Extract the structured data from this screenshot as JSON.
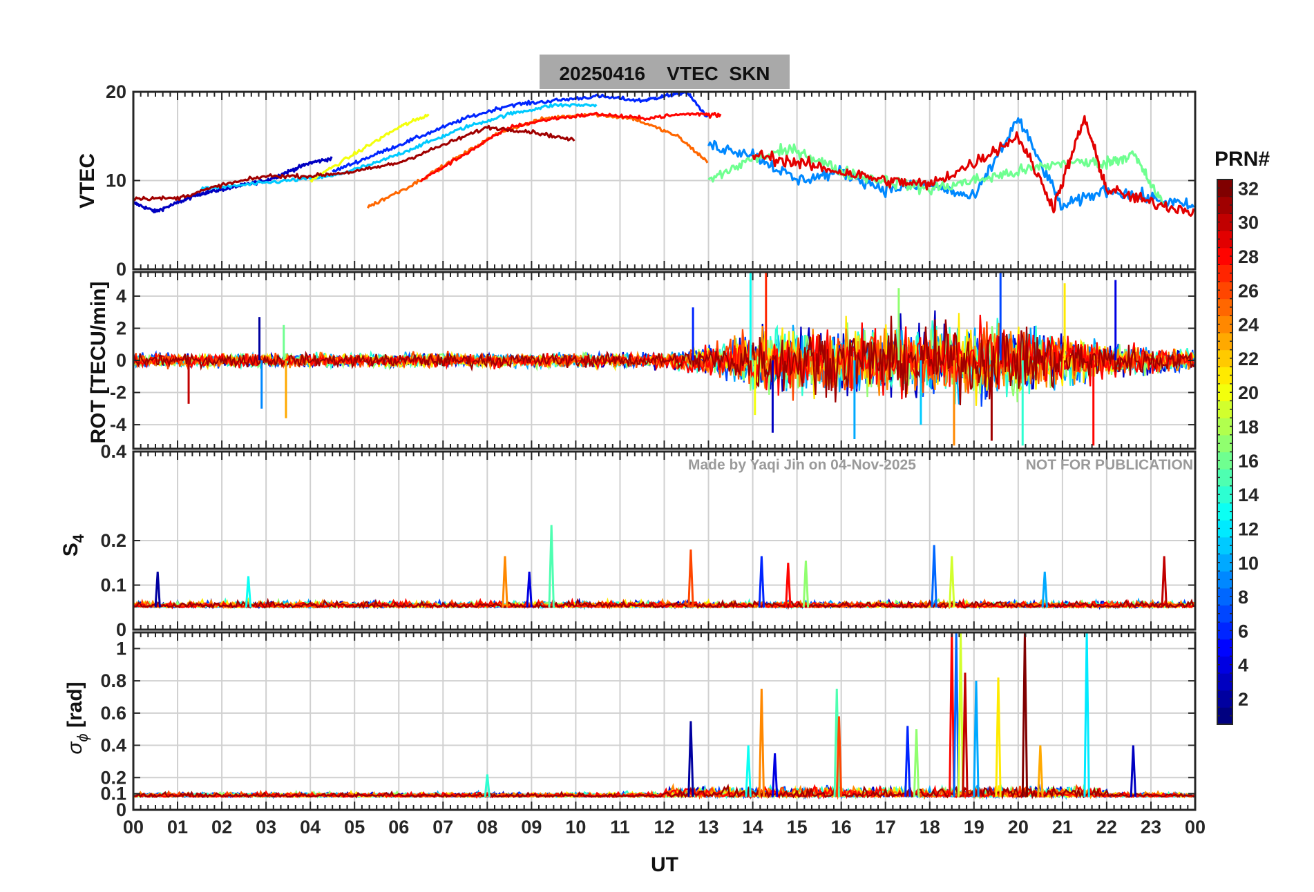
{
  "title": "20250416    VTEC  SKN",
  "watermark_left": "Made by Yaqi Jin on 04-Nov-2025",
  "watermark_right": "NOT FOR PUBLICATION",
  "colorbar": {
    "label": "PRN#",
    "min": 1,
    "max": 32,
    "ticks": [
      "2",
      "4",
      "6",
      "8",
      "10",
      "12",
      "14",
      "16",
      "18",
      "20",
      "22",
      "24",
      "26",
      "28",
      "30",
      "32"
    ],
    "colormap": "jet"
  },
  "chart_data": [
    {
      "type": "line",
      "panel": "vtec",
      "ylabel": "VTEC",
      "ylim": [
        0,
        20
      ],
      "yticks": [
        "0",
        "10",
        "20"
      ],
      "xlim": [
        0,
        24
      ],
      "grid": true,
      "series_note_hidden": true,
      "series": [
        {
          "prn": 3,
          "x": [
            0.0,
            0.5,
            1.0,
            1.5,
            2.0,
            2.5,
            3.0,
            3.5,
            4.0,
            4.5
          ],
          "y": [
            7.5,
            6.5,
            7.5,
            8.5,
            9.0,
            9.5,
            10.0,
            11.0,
            12.0,
            12.5
          ]
        },
        {
          "prn": 6,
          "x": [
            4.5,
            5.5,
            6.5,
            7.5,
            8.5,
            9.5,
            10.5,
            11.5,
            12.0,
            12.5,
            13.0
          ],
          "y": [
            11.0,
            13.0,
            15.0,
            17.0,
            18.5,
            19.0,
            19.5,
            19.0,
            19.5,
            20.0,
            17.0
          ]
        },
        {
          "prn": 11,
          "x": [
            1.5,
            2.5,
            3.5,
            4.5,
            5.5,
            6.5,
            7.5,
            8.5,
            9.5,
            10.5
          ],
          "y": [
            9.0,
            9.5,
            10.0,
            10.5,
            12.0,
            14.0,
            16.0,
            17.5,
            18.5,
            18.5
          ]
        },
        {
          "prn": 20,
          "x": [
            4.0,
            5.0,
            6.0,
            6.7
          ],
          "y": [
            10.0,
            13.0,
            16.0,
            17.5
          ]
        },
        {
          "prn": 25,
          "x": [
            5.3,
            6.3,
            7.3,
            8.3,
            9.3,
            10.3,
            11.3,
            12.3,
            13.0
          ],
          "y": [
            7.0,
            9.5,
            12.5,
            15.5,
            17.0,
            17.5,
            17.0,
            15.0,
            12.0
          ]
        },
        {
          "prn": 28,
          "x": [
            6.5,
            7.5,
            8.5,
            9.5,
            10.5,
            11.5,
            12.5,
            13.3
          ],
          "y": [
            10.0,
            13.0,
            16.0,
            17.0,
            17.5,
            17.0,
            17.5,
            17.5
          ]
        },
        {
          "prn": 31,
          "x": [
            0.0,
            1.0,
            2.0,
            3.0,
            4.0,
            5.0,
            6.0,
            7.0,
            8.0,
            9.0,
            10.0
          ],
          "y": [
            8.0,
            8.0,
            9.5,
            10.5,
            10.5,
            11.0,
            12.0,
            14.0,
            16.0,
            15.5,
            14.5
          ]
        },
        {
          "prn": 9,
          "x": [
            13.0,
            14.0,
            15.0,
            16.0,
            17.0,
            18.0,
            19.0,
            20.0,
            21.0,
            22.0,
            23.0,
            24.0
          ],
          "y": [
            14.0,
            13.0,
            10.0,
            11.0,
            9.0,
            9.5,
            8.0,
            17.0,
            7.0,
            9.0,
            8.0,
            7.0
          ]
        },
        {
          "prn": 16,
          "x": [
            13.0,
            14.0,
            15.0,
            16.0,
            17.0,
            18.0,
            19.0,
            20.0,
            21.0,
            22.0,
            22.6,
            23.3
          ],
          "y": [
            10.0,
            12.5,
            13.5,
            11.0,
            10.0,
            9.0,
            10.0,
            11.0,
            12.0,
            12.0,
            13.0,
            7.0
          ]
        },
        {
          "prn": 29,
          "x": [
            14.0,
            15.0,
            16.0,
            17.0,
            18.0,
            19.0,
            20.0,
            20.8,
            21.5,
            22.0,
            23.0,
            24.0
          ],
          "y": [
            13.0,
            12.0,
            11.0,
            10.0,
            9.5,
            12.0,
            15.0,
            7.0,
            17.0,
            9.0,
            7.5,
            6.5
          ]
        }
      ]
    },
    {
      "type": "line",
      "panel": "rot",
      "ylabel": "ROT [TECU/min]",
      "ylim": [
        -5.5,
        5.5
      ],
      "yticks": [
        "-4",
        "-2",
        "0",
        "2",
        "4"
      ],
      "xlim": [
        0,
        24
      ],
      "grid": true,
      "envelope": {
        "x": [
          0,
          12,
          13.5,
          14,
          18,
          20,
          22,
          24
        ],
        "amplitude": [
          0.7,
          0.8,
          2.0,
          3.5,
          4.0,
          4.0,
          2.0,
          1.0
        ]
      },
      "spikes": [
        {
          "x": 2.85,
          "y": 2.7
        },
        {
          "x": 2.9,
          "y": -3.0
        },
        {
          "x": 3.4,
          "y": 2.2
        },
        {
          "x": 3.45,
          "y": -3.6
        },
        {
          "x": 1.25,
          "y": -2.7
        },
        {
          "x": 12.65,
          "y": 3.3
        },
        {
          "x": 13.95,
          "y": 5.5
        },
        {
          "x": 14.05,
          "y": -3.4
        },
        {
          "x": 14.3,
          "y": 5.5
        },
        {
          "x": 14.45,
          "y": -4.5
        },
        {
          "x": 16.3,
          "y": -4.9
        },
        {
          "x": 17.3,
          "y": 4.5
        },
        {
          "x": 18.55,
          "y": -5.3
        },
        {
          "x": 19.4,
          "y": -5.0
        },
        {
          "x": 19.6,
          "y": 5.5
        },
        {
          "x": 20.1,
          "y": -5.3
        },
        {
          "x": 21.05,
          "y": 4.8
        },
        {
          "x": 21.7,
          "y": -5.3
        },
        {
          "x": 22.2,
          "y": 5.0
        },
        {
          "x": 17.8,
          "y": -4.0
        }
      ]
    },
    {
      "type": "line",
      "panel": "s4",
      "ylabel": "S4",
      "ylim": [
        0,
        0.4
      ],
      "yticks": [
        "0",
        "0.1",
        "0.2",
        "0.4"
      ],
      "xlim": [
        0,
        24
      ],
      "grid": true,
      "baseline": 0.05,
      "spikes": [
        {
          "x": 0.55,
          "y": 0.13
        },
        {
          "x": 2.6,
          "y": 0.12
        },
        {
          "x": 8.4,
          "y": 0.165
        },
        {
          "x": 8.95,
          "y": 0.13
        },
        {
          "x": 9.45,
          "y": 0.235
        },
        {
          "x": 12.6,
          "y": 0.18
        },
        {
          "x": 14.2,
          "y": 0.165
        },
        {
          "x": 15.2,
          "y": 0.155
        },
        {
          "x": 14.8,
          "y": 0.15
        },
        {
          "x": 18.1,
          "y": 0.19
        },
        {
          "x": 18.5,
          "y": 0.165
        },
        {
          "x": 23.3,
          "y": 0.165
        },
        {
          "x": 20.6,
          "y": 0.13
        }
      ]
    },
    {
      "type": "line",
      "panel": "sigma_phi",
      "ylabel": "σ φ [rad]",
      "ylim": [
        0,
        1.1
      ],
      "yticks": [
        "0",
        "0.1",
        "0.2",
        "0.4",
        "0.6",
        "0.8",
        "1"
      ],
      "xlim": [
        0,
        24
      ],
      "xlabel": "UT",
      "xticks": [
        "00",
        "01",
        "02",
        "03",
        "04",
        "05",
        "06",
        "07",
        "08",
        "09",
        "10",
        "11",
        "12",
        "13",
        "14",
        "15",
        "16",
        "17",
        "18",
        "19",
        "20",
        "21",
        "22",
        "23",
        "00"
      ],
      "grid": true,
      "baseline": 0.08,
      "spikes": [
        {
          "x": 12.6,
          "y": 0.55
        },
        {
          "x": 13.9,
          "y": 0.4
        },
        {
          "x": 14.2,
          "y": 0.75
        },
        {
          "x": 14.5,
          "y": 0.35
        },
        {
          "x": 15.9,
          "y": 0.75
        },
        {
          "x": 15.95,
          "y": 0.58
        },
        {
          "x": 17.5,
          "y": 0.52
        },
        {
          "x": 17.7,
          "y": 0.5
        },
        {
          "x": 18.5,
          "y": 1.1
        },
        {
          "x": 18.6,
          "y": 1.1
        },
        {
          "x": 18.7,
          "y": 1.1
        },
        {
          "x": 18.8,
          "y": 0.85
        },
        {
          "x": 19.05,
          "y": 0.8
        },
        {
          "x": 19.55,
          "y": 0.82
        },
        {
          "x": 20.15,
          "y": 1.1
        },
        {
          "x": 21.55,
          "y": 1.1
        },
        {
          "x": 20.5,
          "y": 0.4
        },
        {
          "x": 22.6,
          "y": 0.4
        },
        {
          "x": 8.0,
          "y": 0.22
        }
      ]
    }
  ]
}
